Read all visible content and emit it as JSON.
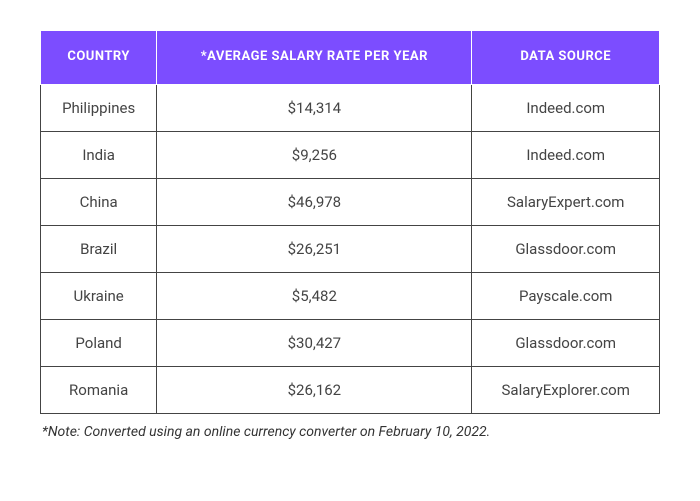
{
  "table": {
    "type": "table",
    "header_bg": "#7c4dff",
    "header_text_color": "#ffffff",
    "header_border_color": "#ffffff",
    "cell_border_color": "#444444",
    "cell_text_color": "#444444",
    "background_color": "#ffffff",
    "header_fontsize": 13,
    "header_fontweight": 700,
    "cell_fontsize": 15,
    "cell_fontweight": 400,
    "columns": [
      {
        "label": "COUNTRY"
      },
      {
        "label": "*AVERAGE SALARY RATE PER YEAR"
      },
      {
        "label": "DATA SOURCE"
      }
    ],
    "rows": [
      {
        "country": "Philippines",
        "salary": "$14,314",
        "source": "Indeed.com"
      },
      {
        "country": "India",
        "salary": "$9,256",
        "source": "Indeed.com"
      },
      {
        "country": "China",
        "salary": "$46,978",
        "source": "SalaryExpert.com"
      },
      {
        "country": "Brazil",
        "salary": "$26,251",
        "source": "Glassdoor.com"
      },
      {
        "country": "Ukraine",
        "salary": "$5,482",
        "source": "Payscale.com"
      },
      {
        "country": "Poland",
        "salary": "$30,427",
        "source": "Glassdoor.com"
      },
      {
        "country": "Romania",
        "salary": "$26,162",
        "source": "SalaryExplorer.com"
      }
    ]
  },
  "note": "*Note: Converted using an online currency converter on February 10, 2022."
}
